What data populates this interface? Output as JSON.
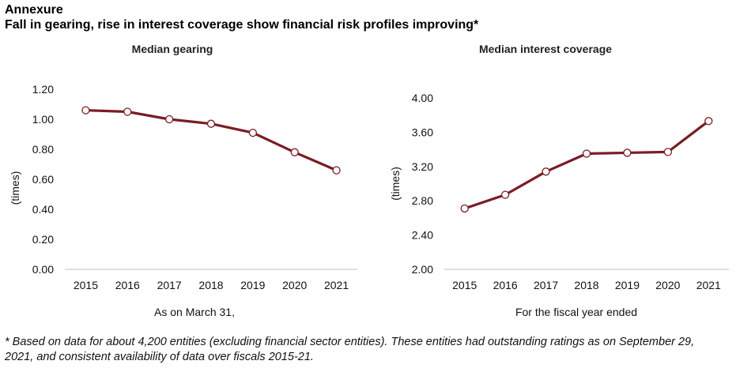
{
  "header": {
    "annex": "Annexure",
    "title": "Fall in gearing, rise in interest coverage show financial risk profiles improving*"
  },
  "colors": {
    "line": "#7b1c24",
    "marker_fill": "#ffffff",
    "axis": "#bfbfbf"
  },
  "chart_data": [
    {
      "type": "line",
      "title": "Median gearing",
      "categories": [
        "2015",
        "2016",
        "2017",
        "2018",
        "2019",
        "2020",
        "2021"
      ],
      "values": [
        1.06,
        1.05,
        1.0,
        0.97,
        0.91,
        0.78,
        0.66
      ],
      "ylabel": "(times)",
      "xlabel": "As on March 31,",
      "ylim": [
        0,
        1.2
      ],
      "yticks": [
        "0.00",
        "0.20",
        "0.40",
        "0.60",
        "0.80",
        "1.00",
        "1.20"
      ],
      "ytick_values": [
        0,
        0.2,
        0.4,
        0.6,
        0.8,
        1.0,
        1.2
      ],
      "grid": false
    },
    {
      "type": "line",
      "title": "Median interest coverage",
      "categories": [
        "2015",
        "2016",
        "2017",
        "2018",
        "2019",
        "2020",
        "2021"
      ],
      "values": [
        2.71,
        2.87,
        3.14,
        3.35,
        3.36,
        3.37,
        3.73
      ],
      "ylabel": "(times)",
      "xlabel": "For the fiscal year ended",
      "ylim": [
        2.0,
        4.0
      ],
      "yticks": [
        "2.00",
        "2.40",
        "2.80",
        "3.20",
        "3.60",
        "4.00"
      ],
      "ytick_values": [
        2.0,
        2.4,
        2.8,
        3.2,
        3.6,
        4.0
      ],
      "grid": false
    }
  ],
  "footnote": "* Based on data for about 4,200 entities (excluding financial sector entities). These entities had outstanding ratings as on September 29, 2021, and consistent availability of data over fiscals 2015-21."
}
